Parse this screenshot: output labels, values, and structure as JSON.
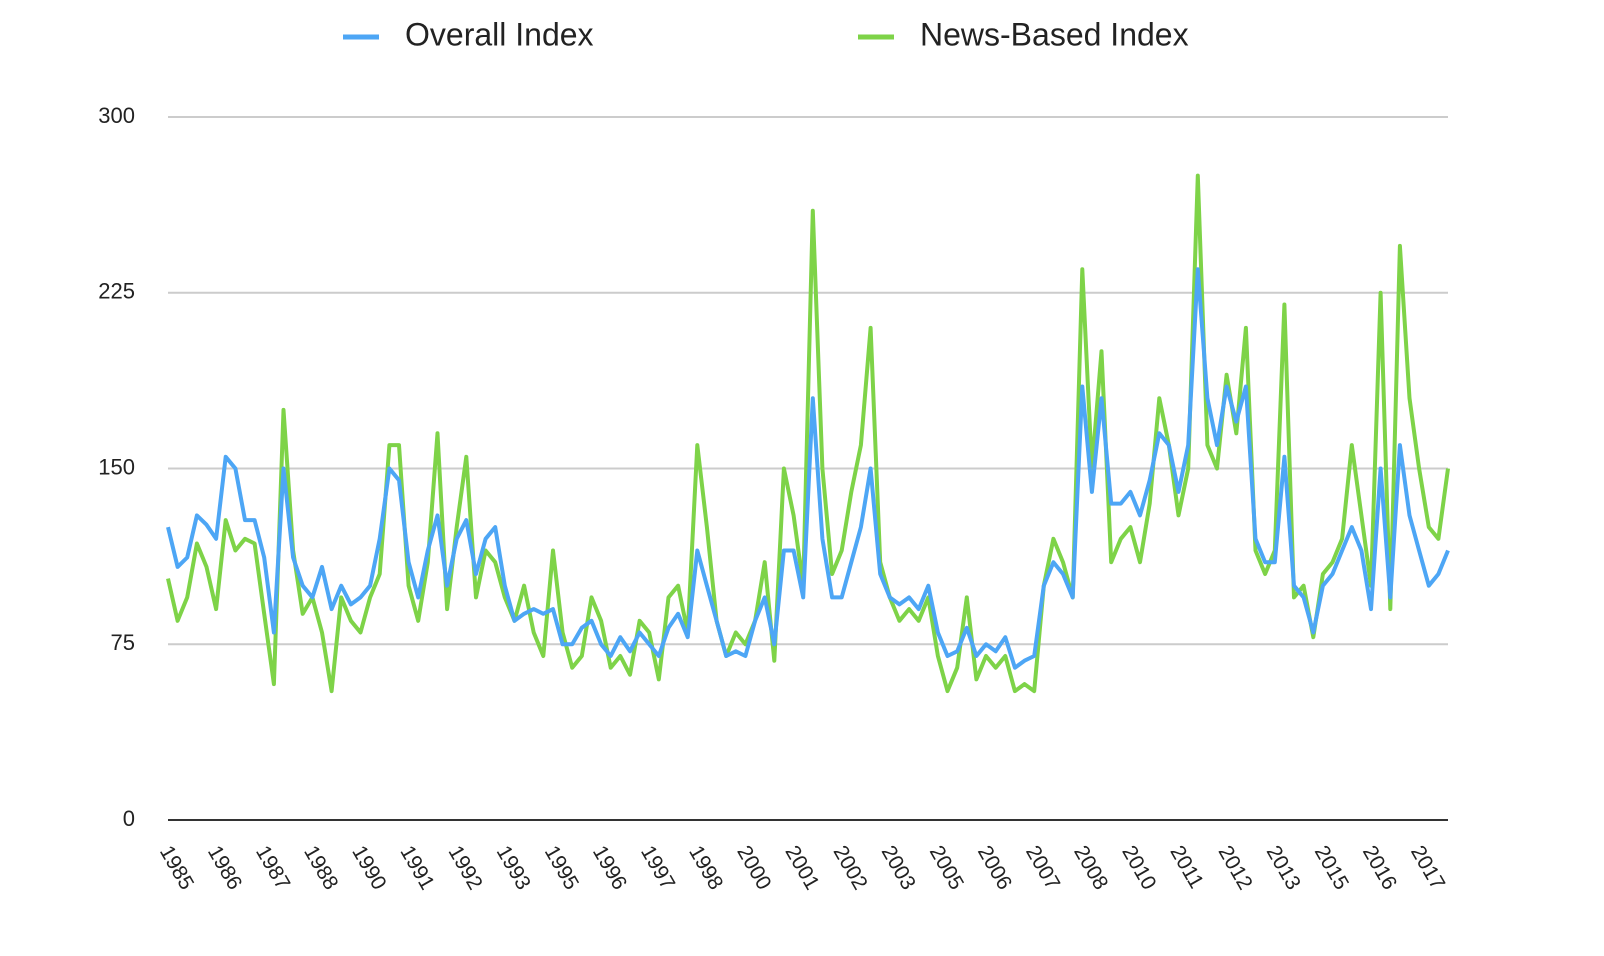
{
  "chart_data": {
    "type": "line",
    "categories": [
      "1985",
      null,
      null,
      null,
      null,
      "1986",
      null,
      null,
      null,
      null,
      "1987",
      null,
      null,
      null,
      null,
      "1988",
      null,
      null,
      null,
      null,
      "1990",
      null,
      null,
      null,
      null,
      "1991",
      null,
      null,
      null,
      null,
      "1992",
      null,
      null,
      null,
      null,
      "1993",
      null,
      null,
      null,
      null,
      "1995",
      null,
      null,
      null,
      null,
      "1996",
      null,
      null,
      null,
      null,
      "1997",
      null,
      null,
      null,
      null,
      "1998",
      null,
      null,
      null,
      null,
      "2000",
      null,
      null,
      null,
      null,
      "2001",
      null,
      null,
      null,
      null,
      "2002",
      null,
      null,
      null,
      null,
      "2003",
      null,
      null,
      null,
      null,
      "2005",
      null,
      null,
      null,
      null,
      "2006",
      null,
      null,
      null,
      null,
      "2007",
      null,
      null,
      null,
      null,
      "2008",
      null,
      null,
      null,
      null,
      "2010",
      null,
      null,
      null,
      null,
      "2011",
      null,
      null,
      null,
      null,
      "2012",
      null,
      null,
      null,
      null,
      "2013",
      null,
      null,
      null,
      null,
      "2015",
      null,
      null,
      null,
      null,
      "2016",
      null,
      null,
      null,
      null,
      "2017",
      null,
      null,
      null
    ],
    "series": [
      {
        "name": "Overall Index",
        "color": "#4da6f5",
        "values": [
          125,
          108,
          112,
          130,
          126,
          120,
          155,
          150,
          128,
          128,
          112,
          80,
          150,
          112,
          100,
          95,
          108,
          90,
          100,
          92,
          95,
          100,
          120,
          150,
          145,
          110,
          95,
          115,
          130,
          100,
          120,
          128,
          105,
          120,
          125,
          100,
          85,
          88,
          90,
          88,
          90,
          75,
          75,
          82,
          85,
          75,
          70,
          78,
          72,
          80,
          75,
          70,
          82,
          88,
          78,
          115,
          100,
          85,
          70,
          72,
          70,
          85,
          95,
          75,
          115,
          115,
          95,
          180,
          120,
          95,
          95,
          110,
          125,
          150,
          105,
          95,
          92,
          95,
          90,
          100,
          80,
          70,
          72,
          82,
          70,
          75,
          72,
          78,
          65,
          68,
          70,
          100,
          110,
          105,
          95,
          185,
          140,
          180,
          135,
          135,
          140,
          130,
          145,
          165,
          160,
          140,
          160,
          235,
          180,
          160,
          185,
          170,
          185,
          120,
          110,
          110,
          155,
          100,
          95,
          80,
          100,
          105,
          115,
          125,
          115,
          90,
          150,
          95,
          160,
          130,
          115,
          100,
          105,
          115
        ]
      },
      {
        "name": "News-Based Index",
        "color": "#7ed348",
        "values": [
          103,
          85,
          95,
          118,
          108,
          90,
          128,
          115,
          120,
          118,
          88,
          58,
          175,
          115,
          88,
          95,
          80,
          55,
          95,
          85,
          80,
          95,
          105,
          160,
          160,
          100,
          85,
          110,
          165,
          90,
          125,
          155,
          95,
          115,
          110,
          95,
          85,
          100,
          80,
          70,
          115,
          80,
          65,
          70,
          95,
          85,
          65,
          70,
          62,
          85,
          80,
          60,
          95,
          100,
          80,
          160,
          125,
          85,
          70,
          80,
          75,
          85,
          110,
          68,
          150,
          130,
          100,
          260,
          150,
          105,
          115,
          140,
          160,
          210,
          110,
          95,
          85,
          90,
          85,
          95,
          70,
          55,
          65,
          95,
          60,
          70,
          65,
          70,
          55,
          58,
          55,
          100,
          120,
          110,
          95,
          235,
          150,
          200,
          110,
          120,
          125,
          110,
          135,
          180,
          160,
          130,
          150,
          275,
          160,
          150,
          190,
          165,
          210,
          115,
          105,
          115,
          220,
          95,
          100,
          78,
          105,
          110,
          120,
          160,
          130,
          100,
          225,
          90,
          245,
          180,
          150,
          125,
          120,
          150
        ]
      }
    ],
    "ylim": [
      0,
      300
    ],
    "yticks": [
      0,
      75,
      150,
      225,
      300
    ],
    "grid": true,
    "legend": "top"
  }
}
